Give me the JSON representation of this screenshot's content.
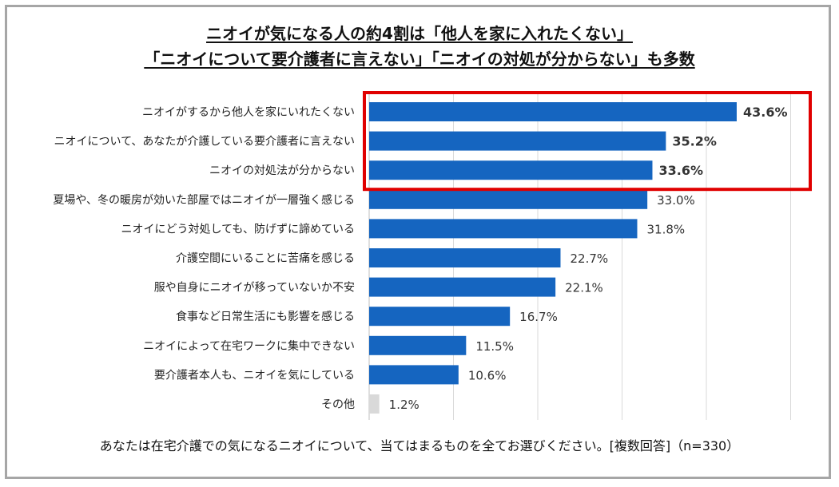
{
  "chart_data": {
    "type": "bar",
    "orientation": "horizontal",
    "title": "ニオイが気になる人の約4割は「他人を家に入れたくない」",
    "subtitle": "「ニオイについて要介護者に言えない」「ニオイの対処が分からない」も多数",
    "categories": [
      "ニオイがするから他人を家にいれたくない",
      "ニオイについて、あなたが介護している要介護者に言えない",
      "ニオイの対処法が分からない",
      "夏場や、冬の暖房が効いた部屋ではニオイが一層強く感じる",
      "ニオイにどう対処しても、防げずに諦めている",
      "介護空間にいることに苦痛を感じる",
      "服や自身にニオイが移っていないか不安",
      "食事など日常生活にも影響を感じる",
      "ニオイによって在宅ワークに集中できない",
      "要介護者本人も、ニオイを気にしている",
      "その他"
    ],
    "values": [
      43.6,
      35.2,
      33.6,
      33.0,
      31.8,
      22.7,
      22.1,
      16.7,
      11.5,
      10.6,
      1.2
    ],
    "value_labels": [
      "43.6%",
      "35.2%",
      "33.6%",
      "33.0%",
      "31.8%",
      "22.7%",
      "22.1%",
      "16.7%",
      "11.5%",
      "10.6%",
      "1.2%"
    ],
    "highlighted_indices": [
      0,
      1,
      2
    ],
    "xlim": [
      0,
      50
    ],
    "grid": true,
    "xlabel": "",
    "ylabel": ""
  },
  "colors": {
    "bar": "#1565c0",
    "bar_other": "#d9d9d9",
    "highlight_box": "#e00000",
    "gridline": "#d9d9d9",
    "frame": "#a6a6a6"
  },
  "footnote": "あなたは在宅介護での気になるニオイについて、当てはまるものを全てお選びください。[複数回答]（n=330）"
}
